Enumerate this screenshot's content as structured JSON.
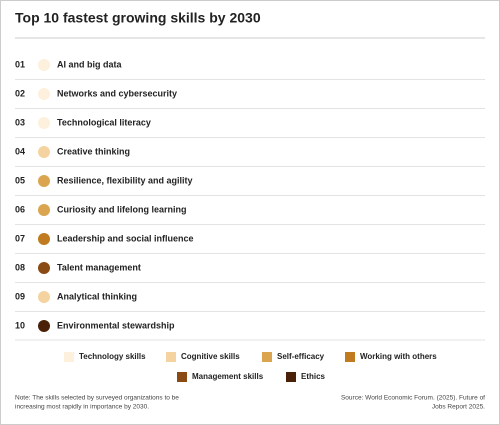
{
  "header": {
    "title": "Top 10 fastest growing skills by 2030"
  },
  "items": [
    {
      "number": "01",
      "label": "AI and big data",
      "color": "#fdf0dc"
    },
    {
      "number": "02",
      "label": "Networks and cybersecurity",
      "color": "#fdf0dc"
    },
    {
      "number": "03",
      "label": "Technological literacy",
      "color": "#fdf0dc"
    },
    {
      "number": "04",
      "label": "Creative thinking",
      "color": "#f5d3a0"
    },
    {
      "number": "05",
      "label": "Resilience, flexibility and agility",
      "color": "#dba550"
    },
    {
      "number": "06",
      "label": "Curiosity and lifelong learning",
      "color": "#dba550"
    },
    {
      "number": "07",
      "label": "Leadership and social influence",
      "color": "#c07a20"
    },
    {
      "number": "08",
      "label": "Talent management",
      "color": "#8a4a14"
    },
    {
      "number": "09",
      "label": "Analytical thinking",
      "color": "#f5d3a0"
    },
    {
      "number": "10",
      "label": "Environmental stewardship",
      "color": "#4a2008"
    }
  ],
  "legend": [
    {
      "label": "Technology skills",
      "color": "#fdf0dc"
    },
    {
      "label": "Cognitive skills",
      "color": "#f5d3a0"
    },
    {
      "label": "Self-efficacy",
      "color": "#dba550"
    },
    {
      "label": "Working with others",
      "color": "#c07a20"
    },
    {
      "label": "Management skills",
      "color": "#8a4a14"
    },
    {
      "label": "Ethics",
      "color": "#4a2008"
    }
  ],
  "footer": {
    "note": [
      "Note: The skills selected by surveyed organizations to be",
      "increasing most rapidly in importance by 2030."
    ],
    "source": [
      "Source: World Economic Forum. (2025). Future of",
      "Jobs Report 2025."
    ]
  }
}
